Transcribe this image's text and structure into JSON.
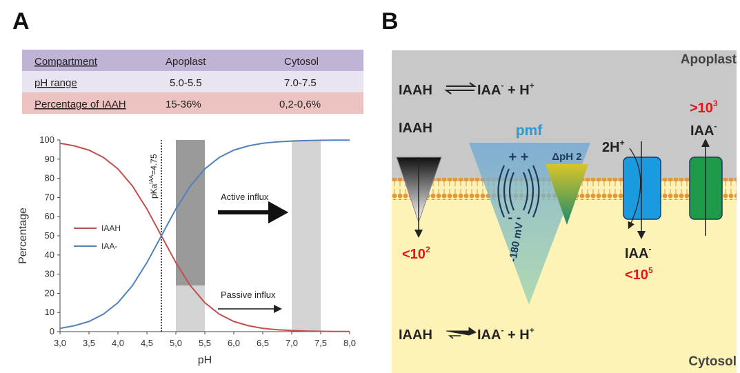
{
  "panel_a": {
    "label": "A",
    "table": {
      "header": [
        "Compartment",
        "Apoplast",
        "Cytosol"
      ],
      "rows": [
        [
          "pH range",
          "5.0-5.5",
          "7.0-7.5"
        ],
        [
          "Percentage of IAAH",
          "15-36%",
          "0,2-0,6%"
        ]
      ]
    }
  },
  "chart_data": {
    "type": "line",
    "xlabel": "pH",
    "ylabel": "Percentage",
    "x": [
      3.0,
      3.25,
      3.5,
      3.75,
      4.0,
      4.25,
      4.5,
      4.75,
      5.0,
      5.25,
      5.5,
      5.75,
      6.0,
      6.25,
      6.5,
      6.75,
      7.0,
      7.25,
      7.5,
      7.75,
      8.0
    ],
    "series": [
      {
        "name": "IAAH",
        "color": "#c0504d",
        "values": [
          98.3,
          96.9,
          94.7,
          90.9,
          84.9,
          76.0,
          64.0,
          50.0,
          36.0,
          24.0,
          15.1,
          9.1,
          5.3,
          3.1,
          1.7,
          1.0,
          0.6,
          0.3,
          0.2,
          0.1,
          0.1
        ]
      },
      {
        "name": "IAA-",
        "color": "#4f81bd",
        "values": [
          1.7,
          3.1,
          5.3,
          9.1,
          15.1,
          24.0,
          36.0,
          50.0,
          64.0,
          76.0,
          84.9,
          90.9,
          94.7,
          96.9,
          98.3,
          99.0,
          99.4,
          99.7,
          99.8,
          99.9,
          99.9
        ]
      }
    ],
    "xlim": [
      3,
      8
    ],
    "ylim": [
      0,
      100
    ],
    "xticks": [
      {
        "value": 3,
        "label": "3,0"
      },
      {
        "value": 3.5,
        "label": "3,5"
      },
      {
        "value": 4,
        "label": "4,0"
      },
      {
        "value": 4.5,
        "label": "4,5"
      },
      {
        "value": 5,
        "label": "5,0"
      },
      {
        "value": 5.5,
        "label": "5,5"
      },
      {
        "value": 6,
        "label": "6,0"
      },
      {
        "value": 6.5,
        "label": "6,5"
      },
      {
        "value": 7,
        "label": "7,0"
      },
      {
        "value": 7.5,
        "label": "7,5"
      },
      {
        "value": 8,
        "label": "8,0"
      }
    ],
    "yticks": [
      0,
      10,
      20,
      30,
      40,
      50,
      60,
      70,
      80,
      90,
      100
    ],
    "legend": "left",
    "shaded_regions": [
      {
        "x": [
          5,
          5.5
        ],
        "y": [
          24,
          100
        ],
        "color": "#9a9a9a"
      },
      {
        "x": [
          5,
          5.5
        ],
        "y": [
          0,
          24
        ],
        "color": "#d4d4d4"
      },
      {
        "x": [
          7,
          7.5
        ],
        "y": [
          0,
          100
        ],
        "color": "#d4d4d4"
      }
    ],
    "reference_line": {
      "x": 4.75,
      "label": "pKa",
      "label_sup": "IAA",
      "label_value": "=4.75"
    },
    "annotations": {
      "active": "Active influx",
      "passive": "Passive influx"
    }
  },
  "diagram": {
    "label": "B",
    "apoplast": "Apoplast",
    "cytosol": "Cytosol",
    "equation_top": {
      "acid": "IAAH",
      "anion": "IAA",
      "anion_charge": "-",
      "proton": " + H",
      "proton_charge": "+"
    },
    "equation_bottom": {
      "acid": "IAAH",
      "anion": "IAA",
      "anion_charge": "-",
      "proton": " + H",
      "proton_charge": "+"
    },
    "diffusion": {
      "species": "IAAH",
      "ratio": "<10",
      "ratio_exp": "2"
    },
    "pmf": {
      "label": "pmf",
      "plus": "+ +",
      "minus": "- -",
      "potential": "-180 mV",
      "delta_ph": "ΔpH 2"
    },
    "importer": {
      "cotransport": "2H",
      "cotransport_charge": "+",
      "species": "IAA",
      "species_charge": "-",
      "ratio": "<10",
      "ratio_exp": "5"
    },
    "exporter": {
      "ratio": ">10",
      "ratio_exp": "3",
      "species": "IAA",
      "species_charge": "-"
    }
  }
}
